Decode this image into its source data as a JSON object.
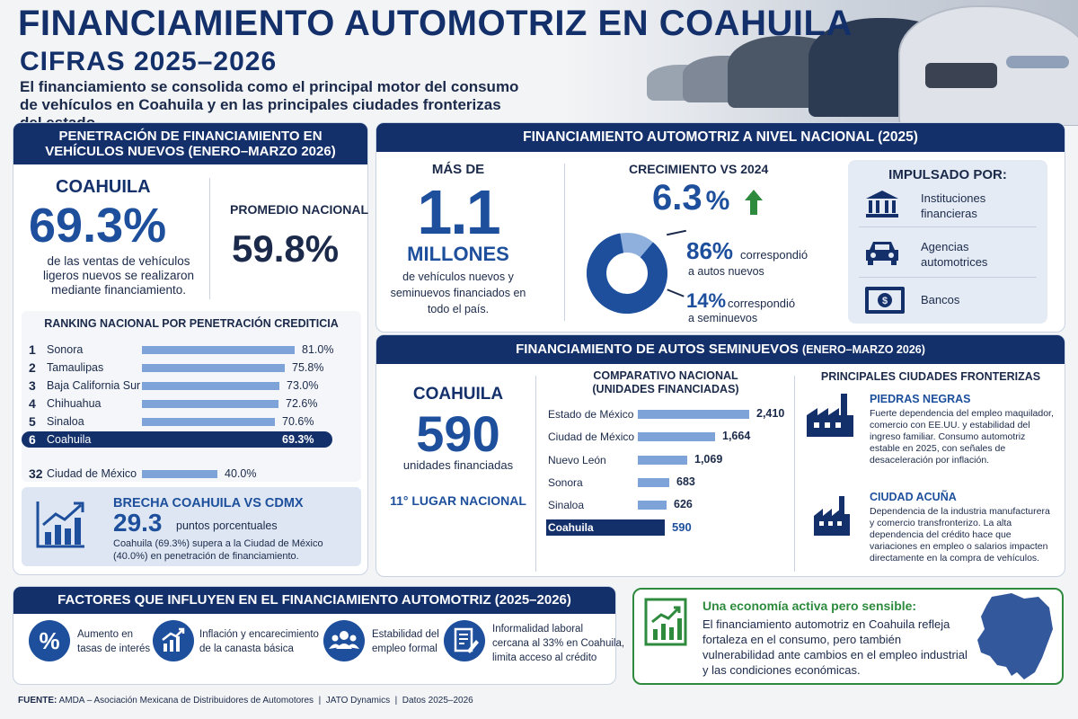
{
  "header": {
    "title": "FINANCIAMIENTO AUTOMOTRIZ EN COAHUILA",
    "subtitle": "CIFRAS 2025–2026",
    "intro": "El financiamiento se consolida como el principal motor del consumo de vehículos en Coahuila y en las principales ciudades fronterizas del estado."
  },
  "penetration": {
    "heading_line1": "PENETRACIÓN DE FINANCIAMIENTO EN",
    "heading_line2": "VEHÍCULOS NUEVOS (ENERO–MARZO 2026)",
    "coahuila_label": "COAHUILA",
    "coahuila_value": "69.3%",
    "coahuila_desc": "de las ventas de vehículos ligeros nuevos se realizaron mediante financiamiento.",
    "national_label": "PROMEDIO NACIONAL",
    "national_value": "59.8%",
    "ranking_title": "RANKING NACIONAL POR PENETRACIÓN CREDITICIA",
    "ranking": [
      {
        "rank": "1",
        "name": "Sonora",
        "value": "81.0%",
        "pct": 81.0
      },
      {
        "rank": "2",
        "name": "Tamaulipas",
        "value": "75.8%",
        "pct": 75.8
      },
      {
        "rank": "3",
        "name": "Baja California Sur",
        "value": "73.0%",
        "pct": 73.0
      },
      {
        "rank": "4",
        "name": "Chihuahua",
        "value": "72.6%",
        "pct": 72.6
      },
      {
        "rank": "5",
        "name": "Sinaloa",
        "value": "70.6%",
        "pct": 70.6
      },
      {
        "rank": "6",
        "name": "Coahuila",
        "value": "69.3%",
        "pct": 69.3
      },
      {
        "rank": "32",
        "name": "Ciudad de México",
        "value": "40.0%",
        "pct": 40.0
      }
    ],
    "gap_title": "BRECHA COAHUILA VS CDMX",
    "gap_value": "29.3",
    "gap_unit": "puntos porcentuales",
    "gap_desc": "Coahuila (69.3%) supera a la Ciudad de México (40.0%) en penetración de financiamiento."
  },
  "national": {
    "heading": "FINANCIAMIENTO AUTOMOTRIZ A NIVEL NACIONAL (2025)",
    "more_than": "MÁS DE",
    "big_number": "1.1",
    "millions": "MILLONES",
    "desc": "de vehículos nuevos y seminuevos financiados en todo el país.",
    "growth_label": "CRECIMIENTO VS 2024",
    "growth_value": "6.3",
    "growth_unit": "%",
    "new_pct": "86%",
    "new_text1": "correspondió",
    "new_text2": "a autos nuevos",
    "used_pct": "14%",
    "used_text1": "correspondió",
    "used_text2": "a seminuevos",
    "donut_new_share": 0.86,
    "drivers_title": "IMPULSADO POR:",
    "drivers": [
      {
        "icon": "bank-icon",
        "line1": "Instituciones",
        "line2": "financieras"
      },
      {
        "icon": "car-icon",
        "line1": "Agencias",
        "line2": "automotrices"
      },
      {
        "icon": "banknote-icon",
        "line1": "Bancos",
        "line2": ""
      }
    ]
  },
  "used": {
    "heading_main": "FINANCIAMIENTO DE AUTOS SEMINUEVOS",
    "heading_period": "(ENERO–MARZO 2026)",
    "coahuila_label": "COAHUILA",
    "coahuila_value": "590",
    "coahuila_unit": "unidades financiadas",
    "rank_text": "11° LUGAR NACIONAL",
    "compare_title_line1": "COMPARATIVO NACIONAL",
    "compare_title_line2": "(UNIDADES FINANCIADAS)",
    "compare": [
      {
        "name": "Estado de México",
        "value": "2,410",
        "units": 2410
      },
      {
        "name": "Ciudad de México",
        "value": "1,664",
        "units": 1664
      },
      {
        "name": "Nuevo León",
        "value": "1,069",
        "units": 1069
      },
      {
        "name": "Sonora",
        "value": "683",
        "units": 683
      },
      {
        "name": "Sinaloa",
        "value": "626",
        "units": 626
      },
      {
        "name": "Coahuila",
        "value": "590",
        "units": 590
      }
    ],
    "cities_title": "PRINCIPALES CIUDADES FRONTERIZAS",
    "cities": [
      {
        "name": "PIEDRAS NEGRAS",
        "desc": "Fuerte dependencia del empleo maquilador, comercio con EE.UU. y estabilidad del ingreso familiar. Consumo automotriz estable en 2025, con señales de desaceleración por inflación."
      },
      {
        "name": "CIUDAD ACUÑA",
        "desc": "Dependencia de la industria manufacturera y comercio transfronterizo. La alta dependencia del crédito hace que variaciones en empleo o salarios impacten directamente en la compra de vehículos."
      }
    ]
  },
  "factors": {
    "heading": "FACTORES QUE INFLUYEN EN EL FINANCIAMIENTO AUTOMOTRIZ (2025–2026)",
    "items": [
      {
        "icon": "percent-icon",
        "line1": "Aumento en",
        "line2": "tasas de interés",
        "line3": ""
      },
      {
        "icon": "rising-chart-icon",
        "line1": "Inflación y encarecimiento",
        "line2": "de la canasta básica",
        "line3": ""
      },
      {
        "icon": "people-icon",
        "line1": "Estabilidad del",
        "line2": "empleo formal",
        "line3": ""
      },
      {
        "icon": "document-icon",
        "line1": "Informalidad laboral",
        "line2": "cercana al 33% en Coahuila,",
        "line3": "limita acceso al crédito"
      }
    ]
  },
  "economy": {
    "title": "Una economía activa pero sensible:",
    "text": "El financiamiento automotriz en Coahuila refleja fortaleza en el consumo, pero también vulnerabilidad ante cambios en el empleo industrial y las condiciones económicas."
  },
  "footer": {
    "label": "FUENTE:",
    "text": "AMDA – Asociación Mexicana de Distribuidores de Automotores  |  JATO Dynamics  |  Datos 2025–2026"
  },
  "colors": {
    "navy": "#14306b",
    "blue": "#1d4f9c",
    "bar": "#7da3d8",
    "green": "#2e8b3e"
  }
}
